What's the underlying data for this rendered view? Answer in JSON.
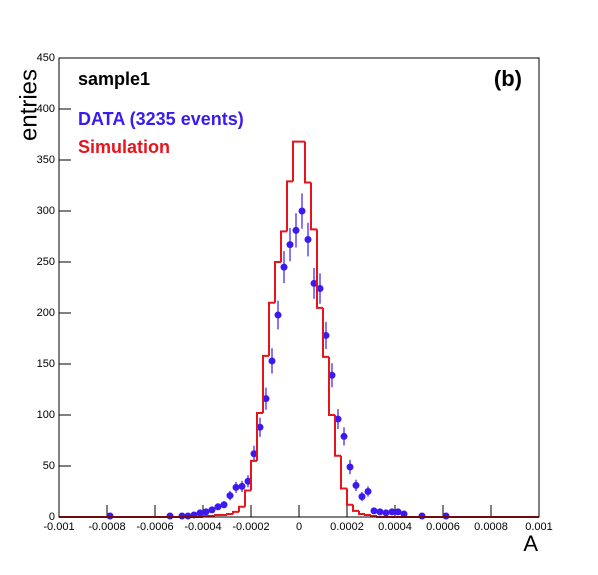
{
  "chart_data": {
    "type": "histogram",
    "x_label": "A",
    "y_label": "entries",
    "annotations": [
      "sample1",
      "(b)"
    ],
    "bins": [
      -0.001,
      -0.000975,
      -0.00095,
      -0.000925,
      -0.0009,
      -0.000875,
      -0.00085,
      -0.000825,
      -0.0008,
      -0.000775,
      -0.00075,
      -0.000725,
      -0.0007,
      -0.000675,
      -0.00065,
      -0.000625,
      -0.0006,
      -0.000575,
      -0.00055,
      -0.000525,
      -0.0005,
      -0.000475,
      -0.00045,
      -0.000425,
      -0.0004,
      -0.000375,
      -0.00035,
      -0.000325,
      -0.0003,
      -0.000275,
      -0.00025,
      -0.000225,
      -0.0002,
      -0.000175,
      -0.00015,
      -0.000125,
      -0.0001,
      -7.5e-05,
      -5e-05,
      -2.5e-05,
      0,
      2.5e-05,
      5e-05,
      7.5e-05,
      0.0001,
      0.000125,
      0.00015,
      0.000175,
      0.0002,
      0.000225,
      0.00025,
      0.000275,
      0.0003,
      0.000325,
      0.00035,
      0.000375,
      0.0004,
      0.000425,
      0.00045,
      0.000475,
      0.0005,
      0.000525,
      0.00055,
      0.000575,
      0.0006,
      0.000625,
      0.00065,
      0.000675,
      0.0007,
      0.000725,
      0.00075,
      0.000775,
      0.0008,
      0.000825,
      0.00085,
      0.000875,
      0.0009,
      0.000925,
      0.00095,
      0.000975,
      0.001
    ],
    "series": [
      {
        "name": "DATA (3235 events)",
        "color": "#3a1aef",
        "style": "points",
        "values": [
          0,
          0,
          0,
          0,
          0,
          0,
          0,
          0,
          1,
          0,
          0,
          0,
          0,
          0,
          0,
          0,
          0,
          0,
          1,
          0,
          1,
          1,
          2,
          4,
          5,
          7,
          10,
          12,
          21,
          29,
          30,
          35,
          62,
          88,
          116,
          153,
          198,
          245,
          267,
          281,
          300,
          272,
          229,
          224,
          178,
          139,
          96,
          79,
          49,
          31,
          20,
          25,
          6,
          5,
          4,
          5,
          5,
          3,
          0,
          0,
          1,
          0,
          0,
          0,
          1,
          0,
          0,
          0,
          0,
          0,
          0,
          0,
          0,
          0,
          0,
          0,
          0,
          0,
          0,
          0
        ],
        "errors": [
          0,
          0,
          0,
          0,
          0,
          0,
          0,
          0,
          1,
          0,
          0,
          0,
          0,
          0,
          0,
          0,
          0,
          0,
          1,
          0,
          1,
          1,
          1.4,
          2,
          2.2,
          2.6,
          3.2,
          3.5,
          4.6,
          5.4,
          5.5,
          5.9,
          7.9,
          9.4,
          10.8,
          12.4,
          14.1,
          15.7,
          16.3,
          16.8,
          17.3,
          16.5,
          15.1,
          15,
          13.3,
          11.8,
          9.8,
          8.9,
          7,
          5.6,
          4.5,
          5,
          2.4,
          2.2,
          2,
          2.2,
          2.2,
          1.7,
          0,
          0,
          1,
          0,
          0,
          0,
          1,
          0,
          0,
          0,
          0,
          0,
          0,
          0,
          0,
          0,
          0,
          0,
          0,
          0,
          0,
          0
        ]
      },
      {
        "name": "Simulation",
        "color": "#e8141c",
        "style": "step",
        "values": [
          0,
          0,
          0,
          0,
          0,
          0,
          0,
          0,
          0,
          0,
          0,
          0,
          0,
          0,
          0,
          0,
          0,
          0,
          0,
          0,
          0,
          0,
          0,
          0,
          1,
          1,
          2,
          2,
          3,
          5,
          10,
          26,
          55,
          102,
          158,
          210,
          250,
          280,
          329,
          368,
          368,
          328,
          282,
          205,
          157,
          100,
          60,
          28,
          12,
          6,
          3,
          2,
          1,
          0,
          0,
          0,
          0,
          0,
          0,
          0,
          0,
          0,
          0,
          0,
          0,
          0,
          0,
          0,
          0,
          0,
          0,
          0,
          0,
          0,
          0,
          0,
          0,
          0,
          0,
          0
        ]
      }
    ],
    "xlim": [
      -0.001,
      0.001
    ],
    "xticks": [
      -0.001,
      -0.0008,
      -0.0006,
      -0.0004,
      -0.0002,
      0,
      0.0002,
      0.0004,
      0.0006,
      0.0008,
      0.001
    ],
    "ylim": [
      0,
      450
    ],
    "yticks": [
      0,
      50,
      100,
      150,
      200,
      250,
      300,
      350,
      400,
      450
    ]
  }
}
